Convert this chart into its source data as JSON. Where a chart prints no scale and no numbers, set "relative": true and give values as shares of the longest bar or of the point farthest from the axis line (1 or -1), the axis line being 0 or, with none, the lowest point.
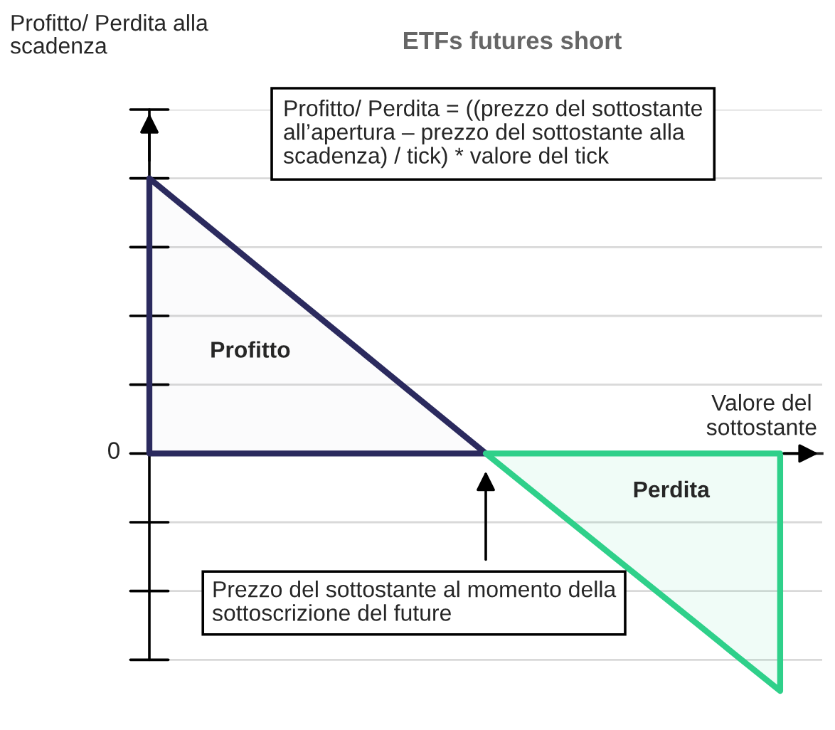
{
  "chart_data": {
    "type": "area",
    "title": "ETFs futures short",
    "xlabel": "Valore del sottostante",
    "relative": true,
    "categories": [
      null,
      null,
      null,
      null,
      null,
      null,
      null,
      null,
      null,
      null,
      null,
      null,
      null,
      null,
      null,
      null,
      null
    ],
    "series": [
      {
        "name": "Profitto",
        "color": "#2b2a5e",
        "values": [
          1,
          0.875,
          0.75,
          0.625,
          0.5,
          0.375,
          0.25,
          0.125,
          0,
          null,
          null,
          null,
          null,
          null,
          null,
          null,
          null
        ]
      },
      {
        "name": "Perdita",
        "color": "#2fd08a",
        "values": [
          null,
          null,
          null,
          null,
          null,
          null,
          null,
          null,
          0,
          -0.123,
          -0.247,
          -0.37,
          -0.493,
          -0.616,
          -0.74,
          -0.863,
          null
        ]
      }
    ],
    "annotations": [
      "Profitto/ Perdita = ((prezzo del sottostante all’apertura – prezzo del sottostante alla scadenza) / tick) * valore del tick",
      "0",
      "Prezzo del sottostante al momento della sottoscrizione del future",
      "Profitto/ Perdita alla scadenza"
    ],
    "grid": "y",
    "legend": false
  }
}
